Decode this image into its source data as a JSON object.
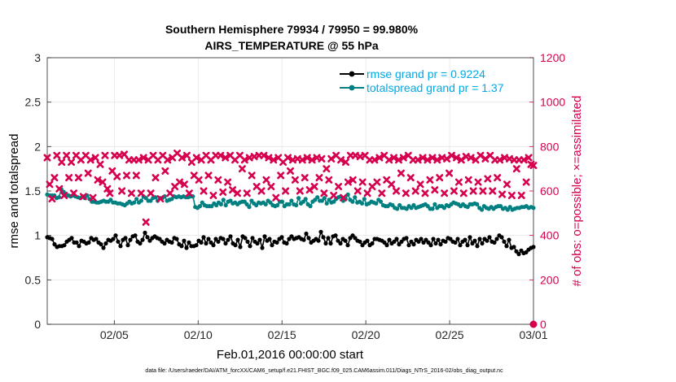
{
  "chart_data": {
    "type": "line",
    "title": "Southern Hemisphere 79934 / 79950 = 99.980%",
    "subtitle": "AIRS_TEMPERATURE @ 55 hPa",
    "xlabel": "Feb.01,2016 00:00:00 start",
    "ylabel_left": "rmse and totalspread",
    "ylabel_right": "# of obs: o=possible; ×=assimilated",
    "xlim": [
      1,
      30
    ],
    "ylim_left": [
      0,
      3
    ],
    "ylim_right": [
      0,
      1200
    ],
    "x_ticks": [
      5,
      10,
      15,
      20,
      25,
      30
    ],
    "x_tick_labels": [
      "02/05",
      "02/10",
      "02/15",
      "02/20",
      "02/25",
      "03/01"
    ],
    "y_ticks_left": [
      0,
      0.5,
      1,
      1.5,
      2,
      2.5,
      3
    ],
    "y_tick_labels_left": [
      "0",
      "0.5",
      "1",
      "1.5",
      "2",
      "2.5",
      "3"
    ],
    "y_ticks_right": [
      0,
      200,
      400,
      600,
      800,
      1000,
      1200
    ],
    "y_tick_labels_right": [
      "0",
      "200",
      "400",
      "600",
      "800",
      "1000",
      "1200"
    ],
    "grid": true,
    "legend_position": "top-right",
    "series": [
      {
        "name": "rmse grand pr = 0.9224",
        "axis": "left",
        "marker": "filled-circle",
        "color": "#000000",
        "values": [
          0.98,
          0.97,
          0.96,
          0.9,
          0.87,
          0.88,
          0.88,
          0.89,
          0.93,
          0.95,
          0.97,
          0.92,
          0.92,
          0.88,
          0.94,
          0.93,
          0.91,
          0.92,
          0.97,
          0.95,
          0.96,
          0.92,
          0.9,
          0.86,
          0.91,
          0.95,
          0.94,
          0.96,
          1.0,
          0.93,
          0.88,
          0.95,
          0.97,
          0.89,
          0.95,
          0.99,
          1.0,
          0.93,
          0.91,
          0.95,
          1.03,
          0.98,
          0.94,
          0.97,
          0.99,
          0.97,
          0.96,
          0.93,
          0.91,
          0.95,
          0.93,
          0.92,
          0.97,
          0.96,
          0.9,
          0.88,
          0.94,
          0.86,
          0.92,
          0.88,
          0.88,
          0.89,
          0.94,
          0.92,
          0.98,
          0.91,
          0.96,
          0.92,
          0.89,
          0.96,
          0.93,
          0.97,
          0.96,
          0.91,
          0.95,
          0.99,
          0.91,
          0.89,
          0.95,
          0.87,
          0.99,
          0.97,
          0.93,
          0.88,
          0.97,
          0.93,
          0.91,
          0.95,
          0.86,
          0.99,
          0.94,
          0.96,
          0.89,
          0.93,
          0.92,
          0.96,
          0.98,
          0.92,
          0.91,
          0.96,
          0.99,
          0.96,
          0.97,
          0.98,
          0.96,
          0.95,
          1.02,
          0.97,
          0.92,
          0.94,
          0.96,
          0.94,
          1.04,
          0.98,
          0.91,
          0.97,
          0.91,
          0.99,
          1.0,
          0.94,
          0.91,
          0.96,
          0.94,
          0.89,
          0.97,
          1.0,
          0.97,
          0.94,
          0.93,
          0.89,
          0.92,
          0.94,
          0.89,
          0.91,
          0.96,
          0.96,
          0.95,
          0.94,
          0.92,
          0.89,
          0.95,
          0.91,
          0.93,
          0.96,
          0.9,
          0.93,
          0.96,
          0.97,
          0.89,
          0.93,
          0.9,
          0.95,
          0.93,
          0.96,
          0.92,
          0.95,
          0.92,
          0.89,
          0.96,
          0.91,
          0.95,
          0.9,
          0.94,
          0.93,
          0.97,
          0.96,
          0.93,
          0.92,
          0.96,
          0.89,
          0.93,
          0.95,
          0.89,
          0.98,
          0.91,
          0.94,
          0.88,
          0.96,
          0.91,
          0.96,
          0.94,
          0.98,
          0.93,
          0.92,
          0.96,
          1.0,
          0.98,
          0.93,
          0.88,
          0.95,
          0.86,
          0.87,
          0.82,
          0.79,
          0.83,
          0.8,
          0.81,
          0.84,
          0.86,
          0.87
        ]
      },
      {
        "name": "totalspread grand pr = 1.37",
        "axis": "left",
        "marker": "filled-circle",
        "color": "#008080",
        "values": [
          1.46,
          1.45,
          1.45,
          1.45,
          1.42,
          1.43,
          1.52,
          1.49,
          1.46,
          1.45,
          1.44,
          1.45,
          1.44,
          1.43,
          1.42,
          1.44,
          1.42,
          1.45,
          1.41,
          1.38,
          1.38,
          1.37,
          1.37,
          1.38,
          1.39,
          1.38,
          1.38,
          1.4,
          1.37,
          1.37,
          1.36,
          1.36,
          1.35,
          1.34,
          1.36,
          1.38,
          1.36,
          1.37,
          1.41,
          1.37,
          1.39,
          1.44,
          1.42,
          1.39,
          1.39,
          1.42,
          1.43,
          1.39,
          1.42,
          1.42,
          1.44,
          1.39,
          1.4,
          1.41,
          1.44,
          1.43,
          1.44,
          1.43,
          1.44,
          1.43,
          1.43,
          1.44,
          1.44,
          1.32,
          1.31,
          1.33,
          1.37,
          1.34,
          1.33,
          1.33,
          1.33,
          1.36,
          1.34,
          1.37,
          1.35,
          1.4,
          1.34,
          1.38,
          1.39,
          1.36,
          1.37,
          1.35,
          1.37,
          1.38,
          1.38,
          1.35,
          1.32,
          1.39,
          1.36,
          1.34,
          1.37,
          1.36,
          1.37,
          1.35,
          1.39,
          1.37,
          1.34,
          1.33,
          1.34,
          1.38,
          1.38,
          1.33,
          1.35,
          1.35,
          1.39,
          1.35,
          1.34,
          1.42,
          1.36,
          1.38,
          1.41,
          1.35,
          1.33,
          1.38,
          1.4,
          1.43,
          1.39,
          1.39,
          1.42,
          1.36,
          1.4,
          1.37,
          1.38,
          1.41,
          1.43,
          1.44,
          1.39,
          1.41,
          1.46,
          1.4,
          1.38,
          1.43,
          1.37,
          1.38,
          1.36,
          1.41,
          1.35,
          1.36,
          1.38,
          1.37,
          1.36,
          1.4,
          1.38,
          1.34,
          1.33,
          1.33,
          1.35,
          1.34,
          1.31,
          1.3,
          1.34,
          1.31,
          1.31,
          1.3,
          1.33,
          1.31,
          1.34,
          1.31,
          1.32,
          1.33,
          1.34,
          1.35,
          1.33,
          1.3,
          1.3,
          1.35,
          1.31,
          1.33,
          1.33,
          1.31,
          1.34,
          1.33,
          1.35,
          1.37,
          1.36,
          1.35,
          1.33,
          1.35,
          1.33,
          1.32,
          1.35,
          1.35,
          1.36,
          1.35,
          1.31,
          1.29,
          1.33,
          1.31,
          1.3,
          1.32,
          1.3,
          1.32,
          1.33,
          1.33,
          1.3,
          1.31,
          1.29,
          1.32,
          1.29,
          1.3,
          1.31,
          1.31,
          1.32,
          1.32,
          1.33,
          1.31,
          1.32,
          1.31
        ]
      },
      {
        "name": "observations assimilated",
        "axis": "right",
        "marker": "x",
        "color": "#d6004f",
        "values": [
          750,
          630,
          565,
          660,
          760,
          610,
          730,
          580,
          760,
          660,
          730,
          590,
          760,
          660,
          740,
          575,
          760,
          680,
          740,
          570,
          750,
          650,
          720,
          640,
          760,
          610,
          590,
          690,
          760,
          665,
          760,
          600,
          765,
          670,
          740,
          590,
          740,
          670,
          740,
          590,
          750,
          460,
          740,
          590,
          760,
          660,
          740,
          565,
          760,
          690,
          740,
          590,
          750,
          620,
          770,
          640,
          750,
          630,
          760,
          590,
          730,
          670,
          750,
          650,
          740,
          600,
          760,
          670,
          740,
          580,
          760,
          650,
          760,
          595,
          750,
          640,
          760,
          605,
          740,
          590,
          760,
          700,
          740,
          590,
          750,
          670,
          755,
          620,
          760,
          600,
          760,
          650,
          750,
          620,
          740,
          570,
          750,
          670,
          730,
          600,
          750,
          690,
          740,
          650,
          745,
          600,
          740,
          660,
          750,
          605,
          740,
          620,
          750,
          660,
          745,
          590,
          700,
          650,
          745,
          580,
          760,
          620,
          740,
          570,
          730,
          640,
          760,
          650,
          760,
          600,
          755,
          640,
          760,
          590,
          740,
          620,
          740,
          640,
          750,
          590,
          760,
          650,
          740,
          630,
          750,
          600,
          740,
          680,
          750,
          590,
          760,
          660,
          740,
          600,
          740,
          630,
          750,
          590,
          740,
          650,
          750,
          605,
          740,
          660,
          750,
          590,
          745,
          680,
          760,
          600,
          750,
          640,
          740,
          590,
          755,
          650,
          750,
          600,
          740,
          640,
          760,
          600,
          745,
          655,
          760,
          600,
          740,
          660,
          740,
          585,
          750,
          630,
          745,
          580,
          740,
          700,
          740,
          580,
          740,
          640,
          750,
          720,
          715
        ]
      },
      {
        "name": "observations possible",
        "axis": "right",
        "marker": "open-circle",
        "color": "#d6004f",
        "values": [
          0
        ]
      }
    ],
    "footer": "data file: /Users/raeder/DAI/ATM_forcXX/CAM6_setup/f.e21.FHIST_BGC.f09_025.CAM6assim.011/Diags_NTrS_2016-02/obs_diag_output.nc"
  }
}
